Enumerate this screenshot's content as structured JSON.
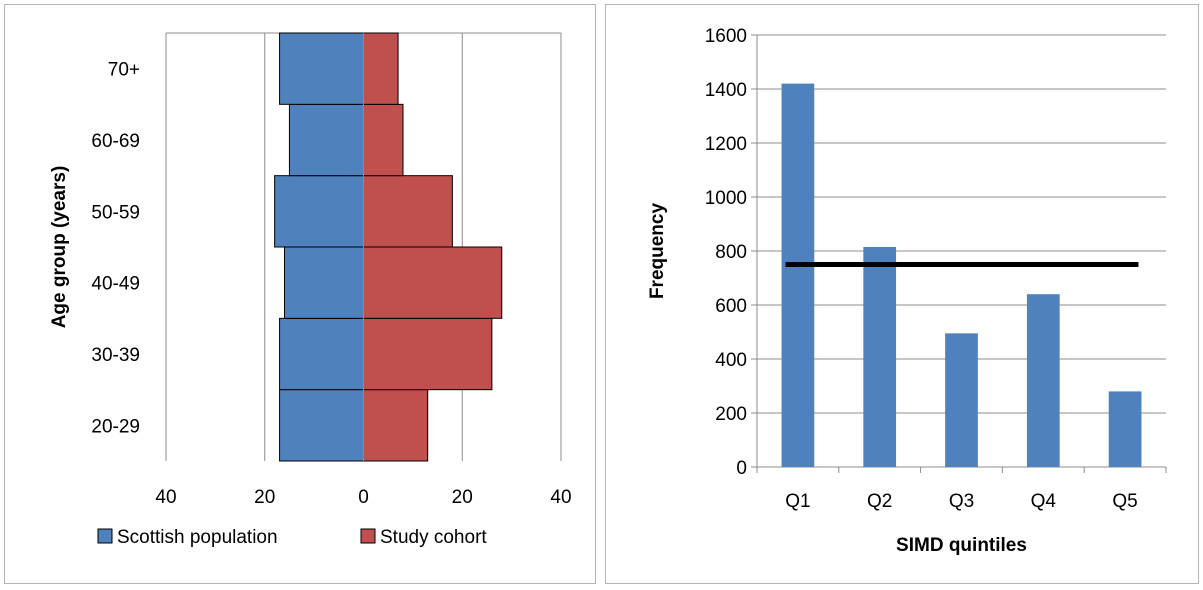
{
  "chart_data": [
    {
      "type": "bar",
      "orientation": "horizontal",
      "subtype": "population-pyramid",
      "title": "",
      "ylabel": "Age group (years)",
      "xlabel": "",
      "categories": [
        "20-29",
        "30-39",
        "40-49",
        "50-59",
        "60-69",
        "70+"
      ],
      "series": [
        {
          "name": "Scottish population",
          "values": [
            17,
            17,
            16,
            18,
            15,
            17
          ],
          "color": "#4f81bd",
          "side": "left"
        },
        {
          "name": "Study cohort",
          "values": [
            13,
            26,
            28,
            18,
            8,
            7
          ],
          "color": "#c0504d",
          "side": "right"
        }
      ],
      "xlim": [
        -40,
        40
      ],
      "x_ticks": [
        -40,
        -20,
        0,
        20,
        40
      ],
      "x_tick_labels": [
        "40",
        "20",
        "0",
        "20",
        "40"
      ],
      "grid": "vertical",
      "legend": "bottom"
    },
    {
      "type": "bar",
      "title": "",
      "xlabel": "SIMD quintiles",
      "ylabel": "Frequency",
      "categories": [
        "Q1",
        "Q2",
        "Q3",
        "Q4",
        "Q5"
      ],
      "values": [
        1420,
        815,
        495,
        640,
        280
      ],
      "color": "#4f81bd",
      "ylim": [
        0,
        1600
      ],
      "y_ticks": [
        0,
        200,
        400,
        600,
        800,
        1000,
        1200,
        1400,
        1600
      ],
      "reference_line": {
        "value": 750,
        "color": "#000000"
      },
      "grid": "horizontal",
      "legend": "none"
    }
  ]
}
